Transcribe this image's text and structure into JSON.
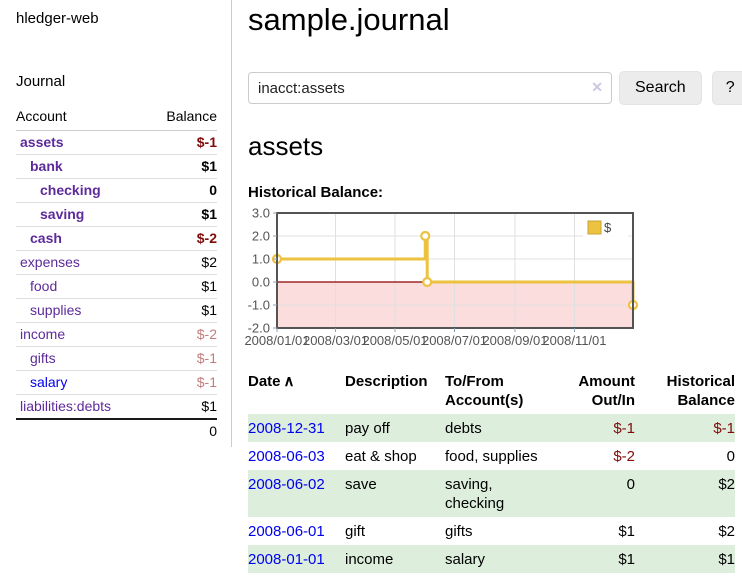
{
  "colors": {
    "purple": "#5e2b9b",
    "blue": "#0000ee",
    "link-blue": "#0000ee",
    "black": "#000000",
    "dark-red": "#7f0b0b",
    "light-red": "#c17d7d",
    "row-green": "#ddeedd",
    "gold": "#edc240",
    "gold-border": "#c8a43a",
    "pink": "#fbdddd",
    "zero-line": "#8b0000",
    "axis-text": "#545454",
    "grid": "#e0e0e0",
    "tick": "#8fa1b3",
    "chart-border": "#545454"
  },
  "sidebar": {
    "brand": "hledger-web",
    "journal_label": "Journal",
    "table": {
      "account_header": "Account",
      "balance_header": "Balance",
      "total": "0"
    },
    "accounts": [
      {
        "label": "assets",
        "depth": 1,
        "bold": true,
        "color": "purple",
        "balance": "$-1",
        "balance_color": "dark-red"
      },
      {
        "label": "bank",
        "depth": 2,
        "bold": true,
        "color": "purple",
        "balance": "$1",
        "balance_color": "black"
      },
      {
        "label": "checking",
        "depth": 3,
        "bold": true,
        "color": "purple",
        "balance": "0",
        "balance_color": "black"
      },
      {
        "label": "saving",
        "depth": 3,
        "bold": true,
        "color": "purple",
        "balance": "$1",
        "balance_color": "black"
      },
      {
        "label": "cash",
        "depth": 2,
        "bold": true,
        "color": "purple",
        "balance": "$-2",
        "balance_color": "dark-red"
      },
      {
        "label": "expenses",
        "depth": 1,
        "bold": false,
        "color": "purple",
        "balance": "$2",
        "balance_color": "black"
      },
      {
        "label": "food",
        "depth": 2,
        "bold": false,
        "color": "purple",
        "balance": "$1",
        "balance_color": "black"
      },
      {
        "label": "supplies",
        "depth": 2,
        "bold": false,
        "color": "purple",
        "balance": "$1",
        "balance_color": "black"
      },
      {
        "label": "income",
        "depth": 1,
        "bold": false,
        "color": "purple",
        "balance": "$-2",
        "balance_color": "light-red"
      },
      {
        "label": "gifts",
        "depth": 2,
        "bold": false,
        "color": "purple",
        "balance": "$-1",
        "balance_color": "light-red"
      },
      {
        "label": "salary",
        "depth": 2,
        "bold": false,
        "color": "blue",
        "balance": "$-1",
        "balance_color": "light-red"
      },
      {
        "label": "liabilities:debts",
        "depth": 1,
        "bold": false,
        "color": "purple",
        "balance": "$1",
        "balance_color": "black"
      }
    ]
  },
  "header": {
    "title": "sample.journal"
  },
  "search": {
    "value": "inacct:assets",
    "clear_icon": "✕",
    "button_label": "Search",
    "help_label": "?"
  },
  "main": {
    "account_heading": "assets",
    "chart_label": "Historical Balance:"
  },
  "chart_data": {
    "type": "line",
    "step": true,
    "title": "Historical Balance of assets",
    "x_start": "2008-01-01",
    "x_end": "2008-12-31",
    "x_span_days": 365,
    "ylim": [
      -2,
      3
    ],
    "yticks": [
      "3.0",
      "2.0",
      "1.0",
      "0.0",
      "-1.0",
      "-2.0"
    ],
    "ytick_values": [
      3,
      2,
      1,
      0,
      -1,
      -2
    ],
    "xticks": [
      {
        "label": "2008/01/01",
        "date": "2008-01-01"
      },
      {
        "label": "2008/03/01",
        "date": "2008-03-01"
      },
      {
        "label": "2008/05/01",
        "date": "2008-05-01"
      },
      {
        "label": "2008/07/01",
        "date": "2008-07-01"
      },
      {
        "label": "2008/09/01",
        "date": "2008-09-01"
      },
      {
        "label": "2008/11/01",
        "date": "2008-11-01"
      }
    ],
    "series": [
      {
        "name": "$",
        "color": "#edc240",
        "points": [
          [
            "2008-01-01",
            1
          ],
          [
            "2008-06-01",
            2
          ],
          [
            "2008-06-03",
            0
          ],
          [
            "2008-12-31",
            -1
          ]
        ]
      }
    ],
    "legend_position": "top-right",
    "grid": true,
    "negative_region": true
  },
  "register": {
    "headers": [
      "Date",
      "Description",
      "To/From Account(s)",
      "Amount Out/In",
      "Historical Balance"
    ],
    "sort_icon": "∧",
    "rows": [
      {
        "date": "2008-12-31",
        "description": "pay off",
        "tofrom": "debts",
        "amount": "$-1",
        "amount_neg": true,
        "balance": "$-1",
        "balance_neg": true
      },
      {
        "date": "2008-06-03",
        "description": "eat & shop",
        "tofrom": "food, supplies",
        "amount": "$-2",
        "amount_neg": true,
        "balance": "0",
        "balance_neg": false
      },
      {
        "date": "2008-06-02",
        "description": "save",
        "tofrom": "saving, checking",
        "amount": "0",
        "amount_neg": false,
        "balance": "$2",
        "balance_neg": false
      },
      {
        "date": "2008-06-01",
        "description": "gift",
        "tofrom": "gifts",
        "amount": "$1",
        "amount_neg": false,
        "balance": "$2",
        "balance_neg": false
      },
      {
        "date": "2008-01-01",
        "description": "income",
        "tofrom": "salary",
        "amount": "$1",
        "amount_neg": false,
        "balance": "$1",
        "balance_neg": false
      }
    ]
  }
}
